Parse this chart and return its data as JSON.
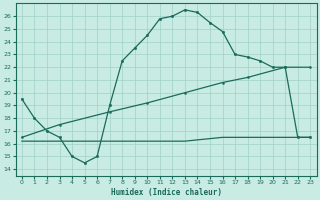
{
  "title": "",
  "xlabel": "Humidex (Indice chaleur)",
  "bg_color": "#c8ebe4",
  "grid_color": "#a0d0c8",
  "line_color": "#1a6b5a",
  "spine_color": "#1a6b5a",
  "xlim": [
    -0.5,
    23.5
  ],
  "ylim": [
    13.5,
    27.0
  ],
  "xticks": [
    0,
    1,
    2,
    3,
    4,
    5,
    6,
    7,
    8,
    9,
    10,
    11,
    12,
    13,
    14,
    15,
    16,
    17,
    18,
    19,
    20,
    21,
    22,
    23
  ],
  "yticks": [
    14,
    15,
    16,
    17,
    18,
    19,
    20,
    21,
    22,
    23,
    24,
    25,
    26
  ],
  "line1_x": [
    0,
    1,
    2,
    3,
    4,
    5,
    6,
    7,
    8,
    9,
    10,
    11,
    12,
    13,
    14,
    15,
    16,
    17,
    18,
    19,
    20,
    21,
    22,
    23
  ],
  "line1_y": [
    19.5,
    18.0,
    17.0,
    16.5,
    15.0,
    14.5,
    15.0,
    19.0,
    22.5,
    23.5,
    24.5,
    25.8,
    26.0,
    26.5,
    26.3,
    25.5,
    24.8,
    23.0,
    22.8,
    22.5,
    22.0,
    22.0,
    16.5,
    16.5
  ],
  "line1_markers": [
    0,
    1,
    2,
    3,
    4,
    5,
    6,
    7,
    8,
    9,
    10,
    11,
    12,
    13,
    14,
    15,
    16,
    17,
    18,
    19,
    20,
    21,
    22,
    23
  ],
  "line2_x": [
    0,
    3,
    7,
    10,
    13,
    16,
    18,
    21,
    23
  ],
  "line2_y": [
    16.5,
    17.5,
    18.5,
    19.2,
    20.0,
    20.8,
    21.2,
    22.0,
    22.0
  ],
  "line3_x": [
    0,
    3,
    6,
    13,
    16,
    21,
    23
  ],
  "line3_y": [
    16.2,
    16.2,
    16.2,
    16.2,
    16.5,
    16.5,
    16.5
  ]
}
